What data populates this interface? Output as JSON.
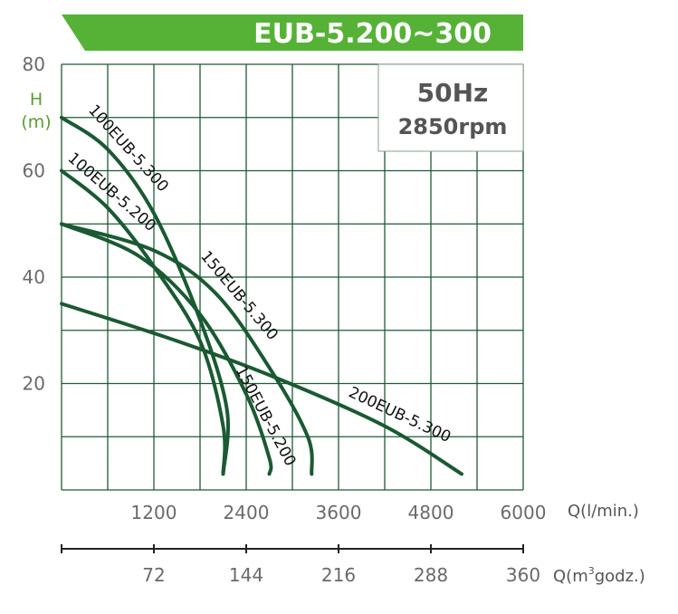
{
  "chart_data": {
    "type": "line",
    "title": "EUB-5.200~300",
    "info_box": {
      "frequency": "50Hz",
      "speed": "2850rpm"
    },
    "ylabel": {
      "symbol": "H",
      "unit": "(m)"
    },
    "yticks": [
      "80",
      "60",
      "40",
      "20"
    ],
    "ylim": [
      0,
      80
    ],
    "xlabel_primary": "Q(l/min.)",
    "xticks_primary": [
      "1200",
      "2400",
      "3600",
      "4800",
      "6000"
    ],
    "xlim_primary": [
      0,
      6000
    ],
    "xlabel_secondary": {
      "prefix": "Q(m",
      "sup": "3",
      "suffix": "godz.)"
    },
    "xticks_secondary": [
      "72",
      "144",
      "216",
      "288",
      "360"
    ],
    "xlim_secondary": [
      0,
      360
    ],
    "grid": true,
    "series": [
      {
        "name": "100EUB-5.300",
        "points": [
          [
            0,
            70
          ],
          [
            600,
            64
          ],
          [
            1200,
            52
          ],
          [
            1800,
            32
          ],
          [
            2150,
            15
          ],
          [
            2100,
            3
          ]
        ]
      },
      {
        "name": "100EUB-5.200",
        "points": [
          [
            0,
            60
          ],
          [
            600,
            53
          ],
          [
            1200,
            42
          ],
          [
            1800,
            28
          ],
          [
            2100,
            12
          ],
          [
            2100,
            3
          ]
        ]
      },
      {
        "name": "150EUB-5.300",
        "points": [
          [
            0,
            50
          ],
          [
            1200,
            45
          ],
          [
            2000,
            37
          ],
          [
            2700,
            23
          ],
          [
            3200,
            10
          ],
          [
            3250,
            3
          ]
        ]
      },
      {
        "name": "150EUB-5.200",
        "points": [
          [
            0,
            50
          ],
          [
            1000,
            44
          ],
          [
            1800,
            33
          ],
          [
            2400,
            18
          ],
          [
            2700,
            6
          ],
          [
            2700,
            3
          ]
        ]
      },
      {
        "name": "200EUB-5.300",
        "points": [
          [
            0,
            35
          ],
          [
            1500,
            28
          ],
          [
            2800,
            21
          ],
          [
            4200,
            12
          ],
          [
            5200,
            3
          ]
        ]
      }
    ]
  }
}
